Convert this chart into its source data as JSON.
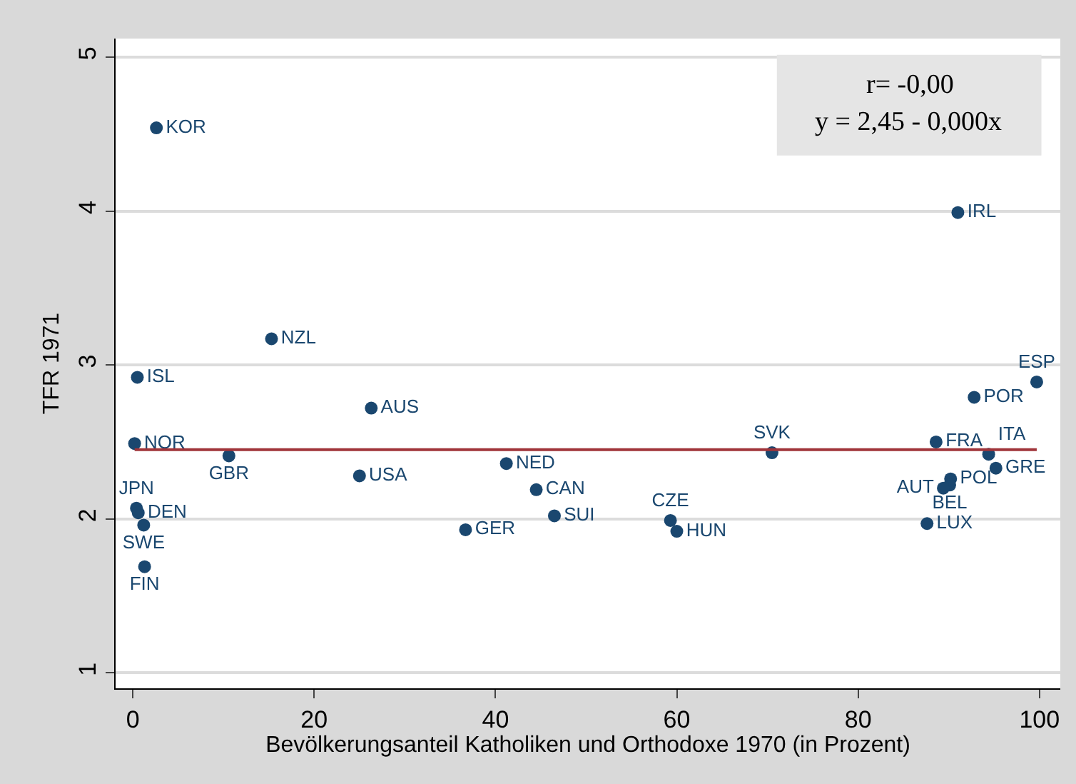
{
  "chart_data": {
    "type": "scatter",
    "xlabel": "Bevölkerungsanteil Katholiken und Orthodoxe 1970 (in Prozent)",
    "ylabel": "TFR 1971",
    "xlim": [
      -1.9,
      102.3
    ],
    "ylim": [
      0.9,
      5.12
    ],
    "xticks": [
      0,
      20,
      40,
      60,
      80,
      100
    ],
    "yticks": [
      1,
      2,
      3,
      4,
      5
    ],
    "grid": "y",
    "annotations": [
      "r= -0,00",
      "y = 2,45 - 0,000x"
    ],
    "series": [
      {
        "color": "#1a476f",
        "marker": "circle",
        "x": [
          2.6,
          15.3,
          0.5,
          26.3,
          0.2,
          10.6,
          25.0,
          0.4,
          0.6,
          1.2,
          1.3,
          36.7,
          41.2,
          44.5,
          46.5,
          59.3,
          60.0,
          70.5,
          91.0,
          99.7,
          92.8,
          88.6,
          94.4,
          95.2,
          90.2,
          90.1,
          89.4,
          87.6
        ],
        "values": [
          4.54,
          3.17,
          2.92,
          2.72,
          2.49,
          2.41,
          2.28,
          2.07,
          2.04,
          1.96,
          1.69,
          1.93,
          2.36,
          2.19,
          2.02,
          1.99,
          1.92,
          2.43,
          3.99,
          2.89,
          2.79,
          2.5,
          2.42,
          2.33,
          2.26,
          2.22,
          2.2,
          1.97
        ],
        "value_labels": [
          "KOR",
          "NZL",
          "ISL",
          "AUS",
          "NOR",
          "GBR",
          "USA",
          "JPN",
          "DEN",
          "SWE",
          "FIN",
          "GER",
          "NED",
          "CAN",
          "SUI",
          "CZE",
          "HUN",
          "SVK",
          "IRL",
          "ESP",
          "POR",
          "FRA",
          "ITA",
          "GRE",
          "POL",
          "BEL",
          "AUT",
          "LUX"
        ]
      },
      {
        "type": "line",
        "color": "#a0343a",
        "x": [
          0.2,
          99.7
        ],
        "values": [
          2.45,
          2.45
        ],
        "line_style": "solid"
      }
    ]
  }
}
